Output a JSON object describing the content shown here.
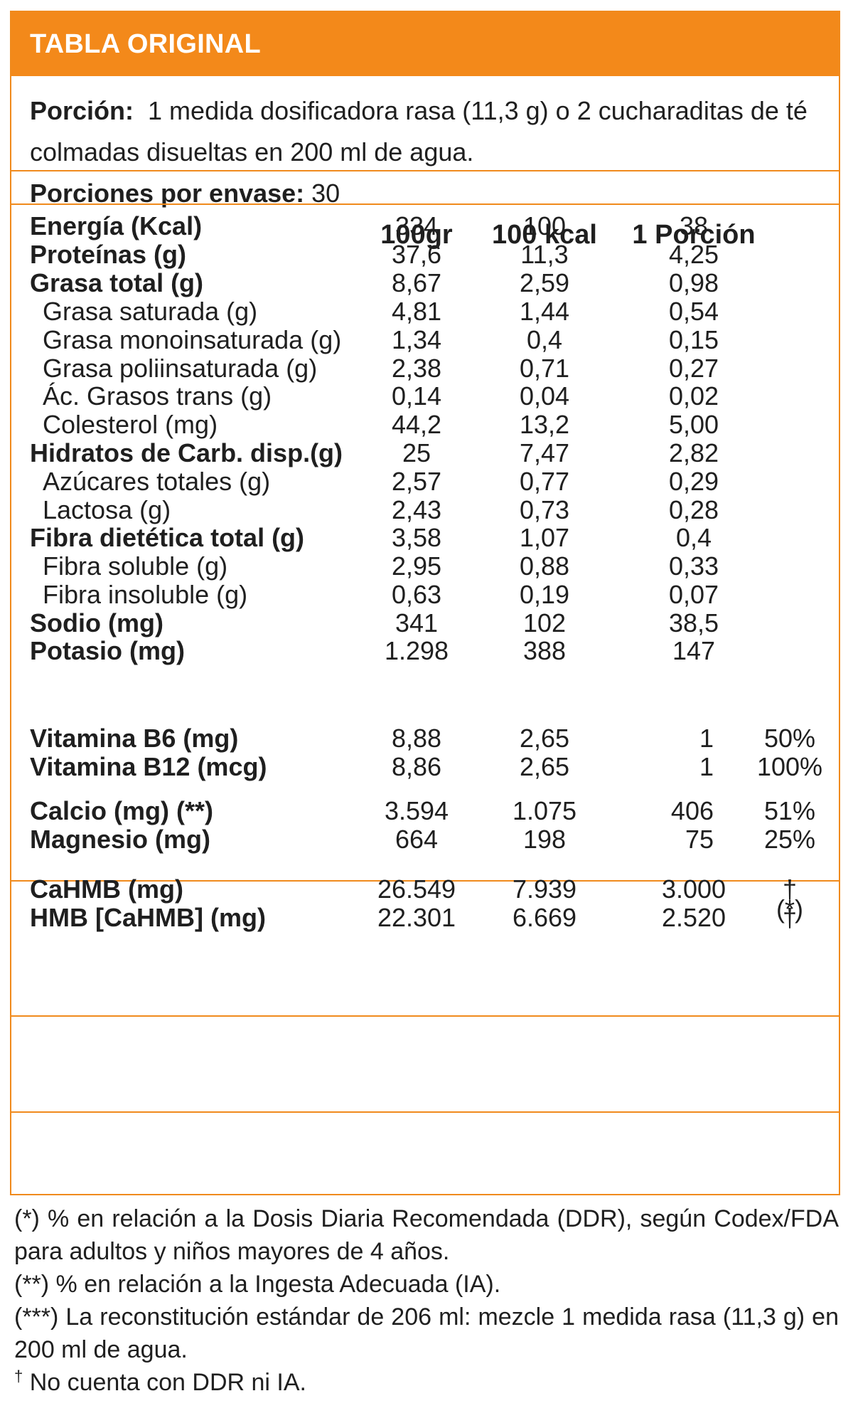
{
  "title": "TABLA ORIGINAL",
  "portion": {
    "label": "Porción:",
    "text": "1 medida dosificadora rasa (11,3 g) o 2 cucharaditas de té colmadas disueltas en 200 ml de agua.",
    "servings_label": "Porciones por envase:",
    "servings_value": "30"
  },
  "columns": [
    "100gr",
    "100 kcal",
    "1 Porción"
  ],
  "nutrients": [
    {
      "label": "Energía (Kcal)",
      "v1": "334",
      "v2": "100",
      "v3": "38"
    },
    {
      "label": "Proteínas (g)",
      "v1": "37,6",
      "v2": "11,3",
      "v3": "4,25"
    },
    {
      "label": "Grasa total (g)",
      "v1": "8,67",
      "v2": "2,59",
      "v3": "0,98"
    },
    {
      "label": "Grasa saturada (g)",
      "v1": "4,81",
      "v2": "1,44",
      "v3": "0,54"
    },
    {
      "label": "Grasa monoinsaturada (g)",
      "v1": "1,34",
      "v2": "0,4",
      "v3": "0,15"
    },
    {
      "label": "Grasa poliinsaturada (g)",
      "v1": "2,38",
      "v2": "0,71",
      "v3": "0,27"
    },
    {
      "label": "Ác. Grasos trans (g)",
      "v1": "0,14",
      "v2": "0,04",
      "v3": "0,02"
    },
    {
      "label": "Colesterol (mg)",
      "v1": "44,2",
      "v2": "13,2",
      "v3": "5,00"
    },
    {
      "label": "Hidratos de Carb. disp.(g)",
      "v1": "25",
      "v2": "7,47",
      "v3": "2,82"
    },
    {
      "label": "Azúcares totales (g)",
      "v1": "2,57",
      "v2": "0,77",
      "v3": "0,29"
    },
    {
      "label": "Lactosa (g)",
      "v1": "2,43",
      "v2": "0,73",
      "v3": "0,28"
    },
    {
      "label": "Fibra dietética total (g)",
      "v1": "3,58",
      "v2": "1,07",
      "v3": "0,4"
    },
    {
      "label": "Fibra soluble (g)",
      "v1": "2,95",
      "v2": "0,88",
      "v3": "0,33"
    },
    {
      "label": "Fibra insoluble (g)",
      "v1": "0,63",
      "v2": "0,19",
      "v3": "0,07"
    },
    {
      "label": "Sodio (mg)",
      "v1": "341",
      "v2": "102",
      "v3": "38,5"
    },
    {
      "label": "Potasio (mg)",
      "v1": "1.298",
      "v2": "388",
      "v3": "147"
    }
  ],
  "vitamins_note_mark": "(*)",
  "vitamins": [
    {
      "label": "Vitamina B6 (mg)",
      "v1": "8,88",
      "v2": "2,65",
      "v3": "1",
      "pct": "50%"
    },
    {
      "label": "Vitamina B12 (mcg)",
      "v1": "8,86",
      "v2": "2,65",
      "v3": "1",
      "pct": "100%"
    }
  ],
  "minerals": [
    {
      "label": "Calcio (mg) (**)",
      "v1": "3.594",
      "v2": "1.075",
      "v3": "406",
      "pct": "51%"
    },
    {
      "label": "Magnesio (mg)",
      "v1": "664",
      "v2": "198",
      "v3": "75",
      "pct": "25%"
    }
  ],
  "hmb": [
    {
      "label": "CaHMB (mg)",
      "v1": "26.549",
      "v2": "7.939",
      "v3": "3.000",
      "pct": "†"
    },
    {
      "label": "HMB [CaHMB] (mg)",
      "v1": "22.301",
      "v2": "6.669",
      "v3": "2.520",
      "pct": "†"
    }
  ],
  "footnotes": {
    "n1": "(*) % en relación a la Dosis Diaria Recomendada (DDR), según Codex/FDA para adultos y niños mayores de 4 años.",
    "n2": "(**) % en relación a la Ingesta Adecuada (IA).",
    "n3": "(***) La reconstitución estándar de 206 ml: mezcle 1 medida rasa (11,3 g) en 200 ml de agua.",
    "n4_mark": "†",
    "n4": "No cuenta con DDR ni IA."
  },
  "colors": {
    "accent": "#f3891a",
    "border": "#f08a1c"
  }
}
